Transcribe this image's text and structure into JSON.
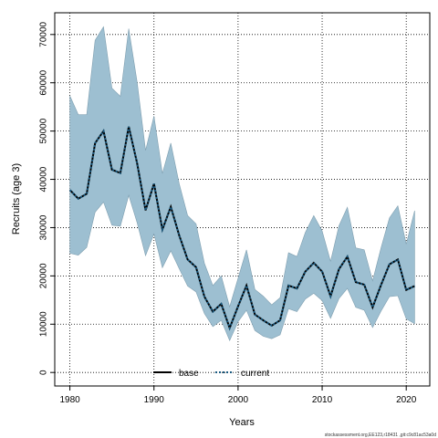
{
  "chart_data": {
    "type": "area",
    "xlabel": "Years",
    "ylabel": "Recruits (age 3)",
    "xlim": [
      1978.2,
      2022.8
    ],
    "ylim": [
      -2800,
      74500
    ],
    "xticks": [
      1980,
      1990,
      2000,
      2010,
      2020
    ],
    "yticks": [
      0,
      10000,
      20000,
      30000,
      40000,
      50000,
      60000,
      70000
    ],
    "grid": true,
    "legend_position": "bottom-center",
    "x": [
      1980,
      1981,
      1982,
      1983,
      1984,
      1985,
      1986,
      1987,
      1988,
      1989,
      1990,
      1991,
      1992,
      1993,
      1994,
      1995,
      1996,
      1997,
      1998,
      1999,
      2000,
      2001,
      2002,
      2003,
      2004,
      2005,
      2006,
      2007,
      2008,
      2009,
      2010,
      2011,
      2012,
      2013,
      2014,
      2015,
      2016,
      2017,
      2018,
      2019,
      2020,
      2021
    ],
    "band": {
      "color": "#9dbfd1",
      "upper": [
        57300,
        53400,
        53400,
        68800,
        71600,
        58900,
        57200,
        71200,
        60100,
        46000,
        53100,
        41200,
        47500,
        39100,
        32500,
        30800,
        22600,
        18000,
        20000,
        13600,
        19500,
        25400,
        17200,
        15800,
        14000,
        15500,
        24800,
        24000,
        29000,
        32500,
        29300,
        23000,
        30400,
        34200,
        25800,
        25400,
        19000,
        25800,
        32000,
        34500,
        26600,
        33500
      ],
      "lower": [
        24700,
        24300,
        25900,
        33200,
        35300,
        30500,
        30300,
        36700,
        31000,
        24200,
        28700,
        21700,
        25200,
        21500,
        17900,
        16700,
        12200,
        9500,
        10800,
        6600,
        10500,
        12900,
        8700,
        7500,
        7000,
        7800,
        13200,
        12600,
        15200,
        16400,
        14900,
        11200,
        15300,
        17400,
        13500,
        12900,
        9300,
        12700,
        15700,
        15900,
        11100,
        10100
      ]
    },
    "series": [
      {
        "name": "base",
        "color": "#000000",
        "style": "solid",
        "values": [
          37800,
          36000,
          37000,
          47500,
          50000,
          42000,
          41300,
          50900,
          43300,
          33600,
          39100,
          29600,
          34300,
          28400,
          23400,
          21800,
          15700,
          12600,
          14200,
          9200,
          13700,
          18000,
          12000,
          10800,
          9700,
          10800,
          18000,
          17400,
          20900,
          22700,
          20900,
          15800,
          21400,
          24000,
          18700,
          18200,
          13500,
          18100,
          22400,
          23400,
          17100,
          17900
        ]
      },
      {
        "name": "current",
        "color": "#1a5a80",
        "style": "dotted",
        "values": [
          37800,
          36000,
          37000,
          47500,
          50000,
          42000,
          41300,
          50900,
          43300,
          33600,
          39100,
          29600,
          34300,
          28400,
          23400,
          21800,
          15700,
          12600,
          14200,
          9200,
          13700,
          18000,
          12000,
          10800,
          9700,
          10800,
          18000,
          17400,
          20900,
          22700,
          20900,
          15800,
          21400,
          24000,
          18700,
          18200,
          13500,
          18100,
          22400,
          23400,
          17100,
          17900
        ]
      }
    ]
  },
  "watermark": "stockassessment.org,EE123,r18431 ,git:c9c81ac53a0d"
}
